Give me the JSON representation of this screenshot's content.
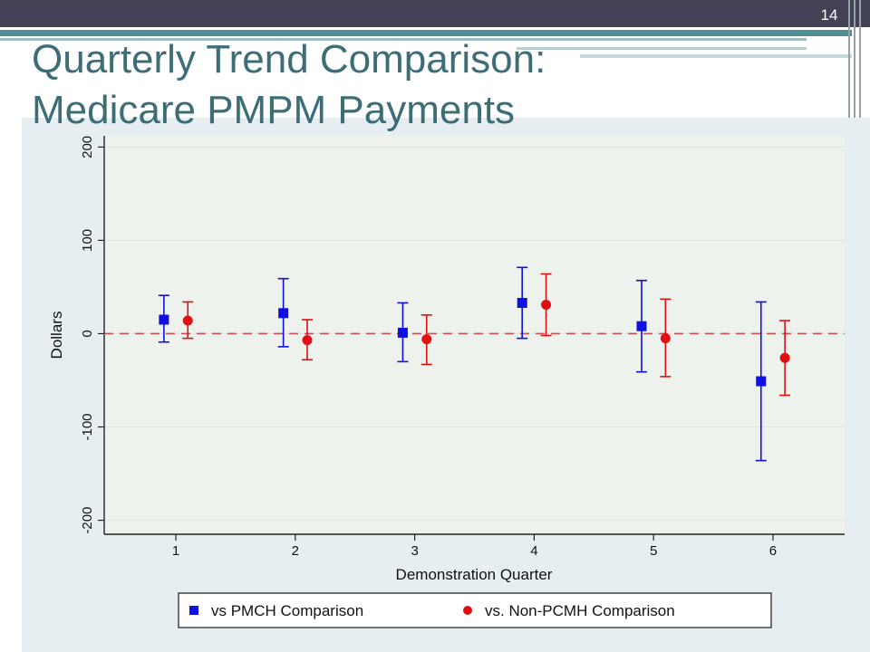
{
  "slide": {
    "page_number": "14",
    "title": "Quarterly Trend Comparison:\nMedicare PMPM Payments"
  },
  "colors": {
    "series_1": "#1010e0",
    "series_2": "#e01010",
    "reference_line": "#c0505a",
    "plot_area": "#eef2ec",
    "outer_background": "#e7eef2",
    "title": "#3d6e78",
    "header_bar": "#434155"
  },
  "chart_data": {
    "type": "scatter",
    "title": "",
    "xlabel": "Demonstration Quarter",
    "ylabel": "Dollars",
    "xlim": [
      0.4,
      6.6
    ],
    "ylim": [
      -215,
      212
    ],
    "x_ticks": [
      "1",
      "2",
      "3",
      "4",
      "5",
      "6"
    ],
    "y_ticks": [
      200,
      100,
      0,
      -100,
      -200
    ],
    "y_tick_labels": [
      "200",
      "100",
      "0",
      "-100",
      "-200"
    ],
    "reference_line": 0,
    "grid": true,
    "legend_position": "bottom",
    "series": [
      {
        "name": "vs PMCH Comparison",
        "marker": "square",
        "points": [
          {
            "x": 1,
            "y": 15,
            "low": -9,
            "high": 41
          },
          {
            "x": 2,
            "y": 22,
            "low": -14,
            "high": 59
          },
          {
            "x": 3,
            "y": 1,
            "low": -30,
            "high": 33
          },
          {
            "x": 4,
            "y": 33,
            "low": -5,
            "high": 71
          },
          {
            "x": 5,
            "y": 8,
            "low": -41,
            "high": 57
          },
          {
            "x": 6,
            "y": -51,
            "low": -136,
            "high": 34
          }
        ]
      },
      {
        "name": "vs. Non-PCMH Comparison",
        "marker": "circle",
        "points": [
          {
            "x": 1,
            "y": 14,
            "low": -5,
            "high": 34
          },
          {
            "x": 2,
            "y": -7,
            "low": -28,
            "high": 15
          },
          {
            "x": 3,
            "y": -6,
            "low": -33,
            "high": 20
          },
          {
            "x": 4,
            "y": 31,
            "low": -2,
            "high": 64
          },
          {
            "x": 5,
            "y": -5,
            "low": -46,
            "high": 37
          },
          {
            "x": 6,
            "y": -26,
            "low": -66,
            "high": 14
          }
        ]
      }
    ]
  }
}
